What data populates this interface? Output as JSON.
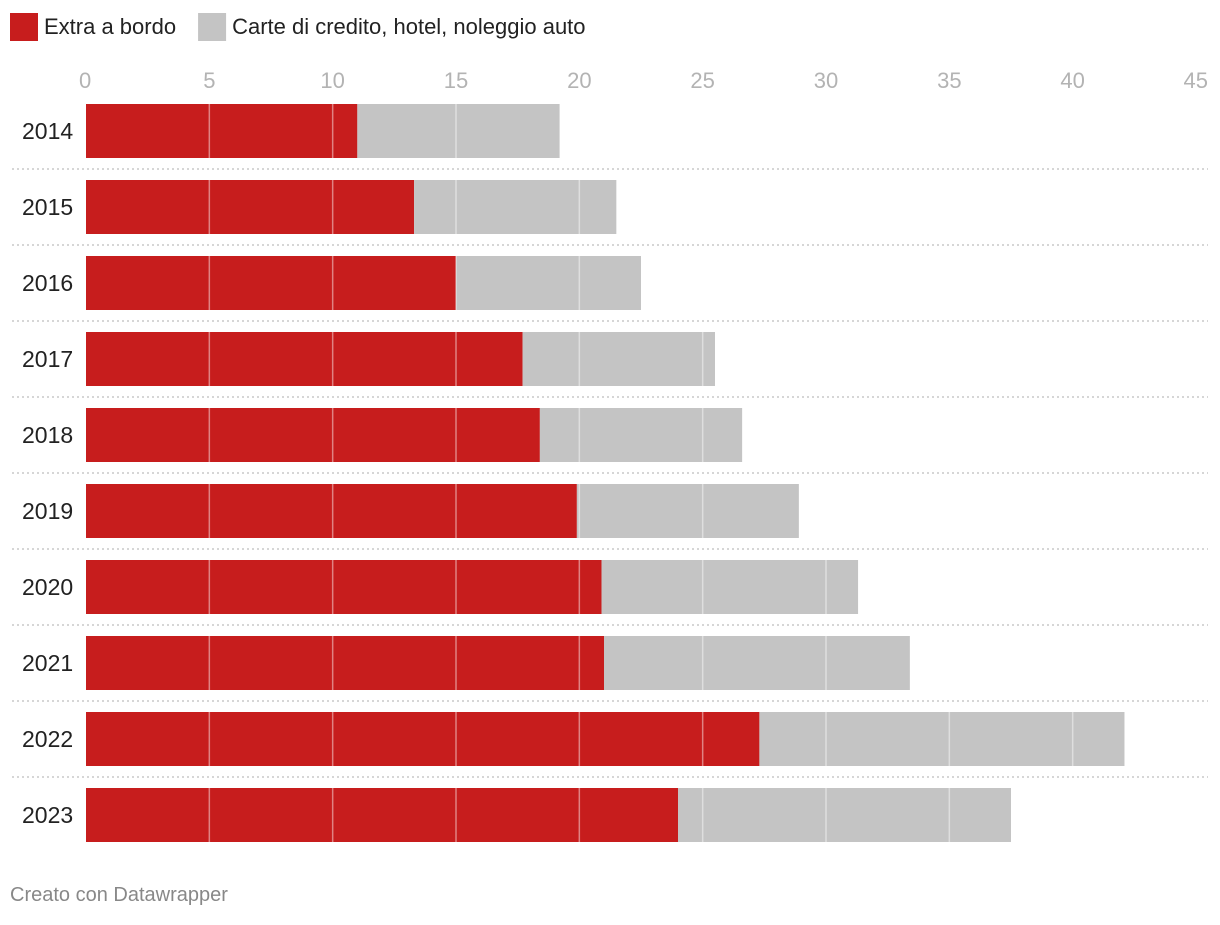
{
  "colors": {
    "series_1": "#c71d1d",
    "series_2": "#c4c4c4",
    "axis_text": "#b3b3b3",
    "label_text": "#222222",
    "footer_text": "#888888",
    "separator": "#c8c8c8",
    "gridline_on_bar": "#ffffff"
  },
  "footer": {
    "credit": "Creato con Datawrapper"
  },
  "chart_data": {
    "type": "bar",
    "orientation": "horizontal",
    "stacked": true,
    "title": "",
    "xlabel": "",
    "ylabel": "",
    "xlim": [
      0,
      45
    ],
    "ticks": [
      0,
      5,
      10,
      15,
      20,
      25,
      30,
      35,
      40,
      45
    ],
    "legend_position": "top-left",
    "categories": [
      "2014",
      "2015",
      "2016",
      "2017",
      "2018",
      "2019",
      "2020",
      "2021",
      "2022",
      "2023"
    ],
    "series": [
      {
        "name": "Extra a bordo",
        "color": "#c71d1d",
        "values": [
          11.0,
          13.3,
          15.0,
          17.7,
          18.4,
          19.9,
          20.9,
          21.0,
          27.3,
          24.0
        ]
      },
      {
        "name": "Carte di credito, hotel, noleggio auto",
        "color": "#c4c4c4",
        "values": [
          8.2,
          8.2,
          7.5,
          7.8,
          8.2,
          9.0,
          10.4,
          12.4,
          14.8,
          13.5
        ]
      }
    ]
  }
}
